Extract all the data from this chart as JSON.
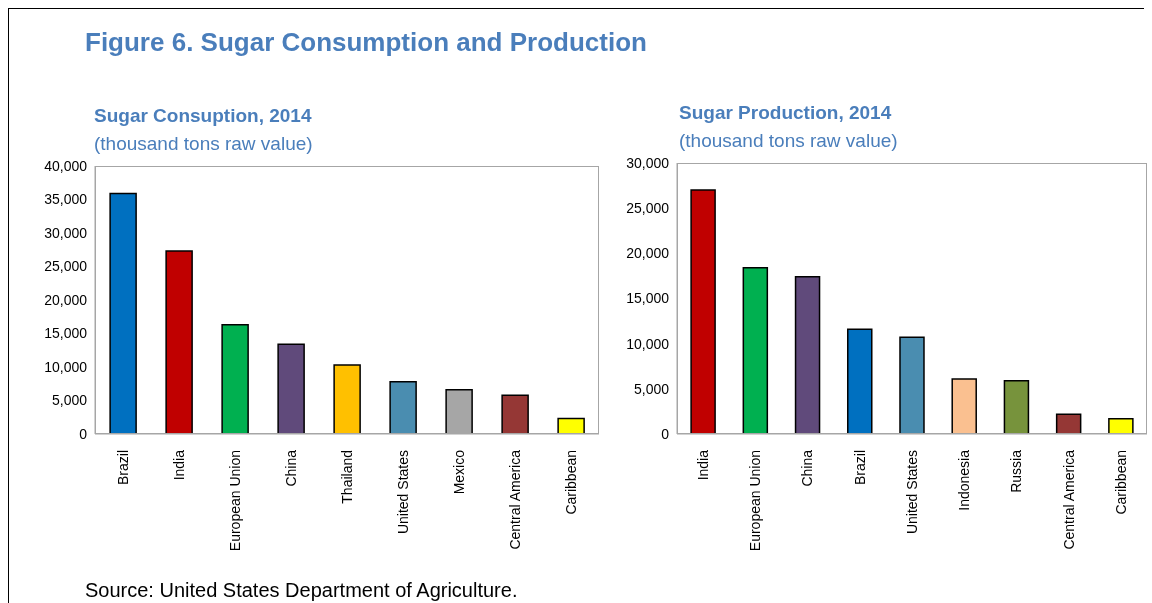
{
  "chart_data": [
    {
      "type": "bar",
      "title": "Sugar Consuption, 2014",
      "subtitle": "(thousand tons raw value)",
      "annotations": [
        "Figure 6. Sugar Consumption and Production",
        "Source: United States Department of Agriculture."
      ],
      "categories": [
        "Brazil",
        "India",
        "European Union",
        "China",
        "Thailand",
        "United States",
        "Mexico",
        "Central America",
        "Caribbean"
      ],
      "values": [
        35900,
        27300,
        16300,
        13400,
        10300,
        7800,
        6600,
        5800,
        2300
      ],
      "colors": [
        "#0070c0",
        "#c00000",
        "#00b050",
        "#604a7b",
        "#ffc000",
        "#4a8db0",
        "#a6a6a6",
        "#953735",
        "#ffff00"
      ],
      "ylim": [
        0,
        40000
      ],
      "yticks": [
        0,
        {
          "value": 5000,
          "label": "5,000"
        },
        {
          "value": 10000,
          "label": "10,000"
        },
        {
          "value": 15000,
          "label": "15,000"
        },
        {
          "value": 20000,
          "label": "20,000"
        },
        {
          "value": 25000,
          "label": "25,000"
        },
        {
          "value": 30000,
          "label": "30,000"
        },
        {
          "value": 35000,
          "label": "35,000"
        },
        {
          "value": 40000,
          "label": "40,000"
        }
      ],
      "grid": false,
      "legend": false
    },
    {
      "type": "bar",
      "title": "Sugar Production, 2014",
      "subtitle": "(thousand tons raw value)",
      "categories": [
        "India",
        "European Union",
        "China",
        "Brazil",
        "United States",
        "Indonesia",
        "Russia",
        "Central America",
        "Caribbean"
      ],
      "values": [
        27000,
        18400,
        17400,
        11600,
        10700,
        6100,
        5900,
        2200,
        1700
      ],
      "colors": [
        "#c00000",
        "#00b050",
        "#604a7b",
        "#0070c0",
        "#4a8db0",
        "#fac090",
        "#77933c",
        "#953735",
        "#ffff00"
      ],
      "ylim": [
        0,
        30000
      ],
      "yticks": [
        0,
        {
          "value": 5000,
          "label": "5,000"
        },
        {
          "value": 10000,
          "label": "10,000"
        },
        {
          "value": 15000,
          "label": "15,000"
        },
        {
          "value": 20000,
          "label": "20,000"
        },
        {
          "value": 25000,
          "label": "25,000"
        },
        {
          "value": 30000,
          "label": "30,000"
        }
      ],
      "grid": false,
      "legend": false
    }
  ]
}
